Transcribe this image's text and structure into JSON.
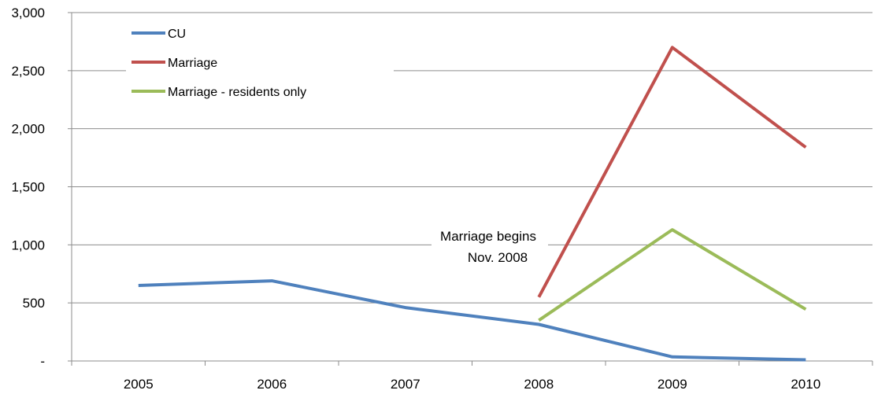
{
  "chart_data": {
    "type": "line",
    "title": "",
    "xlabel": "",
    "ylabel": "",
    "categories": [
      "2005",
      "2006",
      "2007",
      "2008",
      "2009",
      "2010"
    ],
    "ylim": [
      0,
      3000
    ],
    "yticks": [
      0,
      500,
      1000,
      1500,
      2000,
      2500,
      3000
    ],
    "ytick_labels": [
      "-",
      "500",
      "1,000",
      "1,500",
      "2,000",
      "2,500",
      "3,000"
    ],
    "grid": true,
    "legend_position": "top-left",
    "series": [
      {
        "name": "CU",
        "color": "#4f81bd",
        "values": [
          650,
          690,
          460,
          315,
          35,
          10
        ]
      },
      {
        "name": "Marriage",
        "color": "#c0504d",
        "values": [
          null,
          null,
          null,
          550,
          2700,
          1840
        ]
      },
      {
        "name": "Marriage - residents only",
        "color": "#9bbb59",
        "values": [
          null,
          null,
          null,
          350,
          1130,
          445
        ]
      }
    ],
    "annotation": {
      "lines": [
        "Marriage begins",
        "Nov. 2008"
      ]
    }
  }
}
